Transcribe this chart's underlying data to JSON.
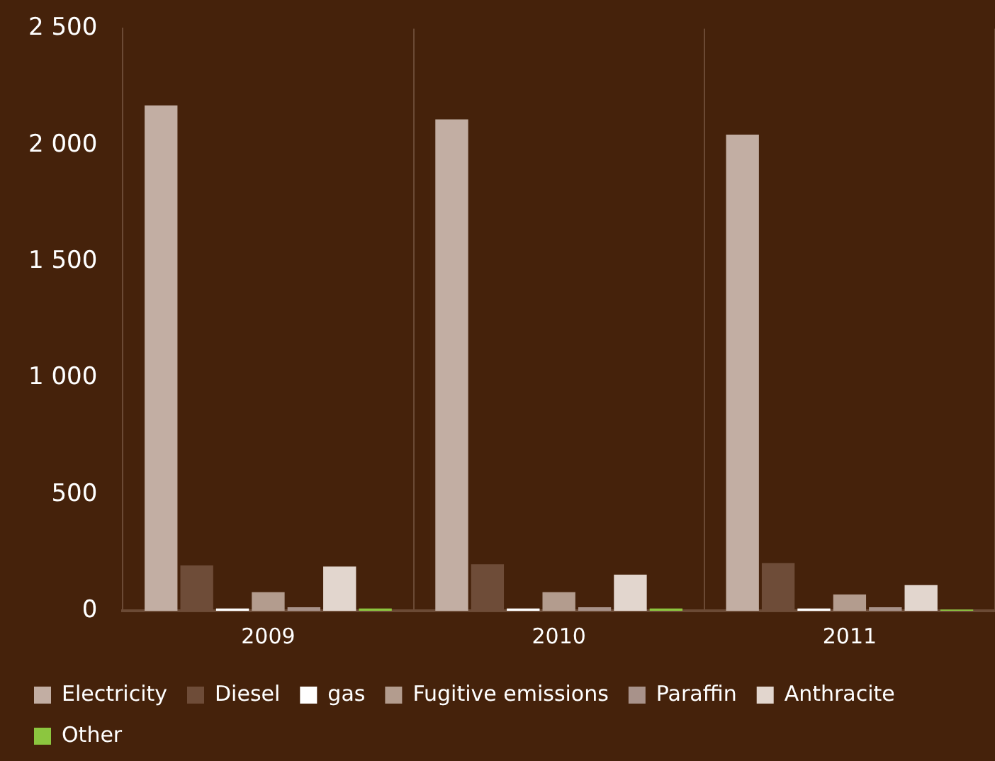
{
  "chart_data": {
    "type": "bar",
    "categories": [
      "2009",
      "2010",
      "2011"
    ],
    "series": [
      {
        "name": "Electricity",
        "color": "#c2aea3",
        "values": [
          2170,
          2110,
          2045
        ]
      },
      {
        "name": "Diesel",
        "color": "#6e4c38",
        "values": [
          195,
          200,
          205
        ]
      },
      {
        "name": "gas",
        "color": "#ffffff",
        "values": [
          10,
          10,
          10
        ]
      },
      {
        "name": "Fugitive emissions",
        "color": "#b39c8e",
        "values": [
          80,
          80,
          70
        ]
      },
      {
        "name": "Paraffin",
        "color": "#a8928a",
        "values": [
          15,
          15,
          15
        ]
      },
      {
        "name": "Anthracite",
        "color": "#e2d6ce",
        "values": [
          190,
          155,
          110
        ]
      },
      {
        "name": "Other",
        "color": "#8cc63f",
        "values": [
          10,
          10,
          5
        ]
      }
    ],
    "ylim": [
      0,
      2500
    ],
    "yticks": [
      {
        "value": 0,
        "label": "0"
      },
      {
        "value": 500,
        "label": "500"
      },
      {
        "value": 1000,
        "label": "1 000"
      },
      {
        "value": 1500,
        "label": "1 500"
      },
      {
        "value": 2000,
        "label": "2 000"
      },
      {
        "value": 2500,
        "label": "2 500"
      }
    ],
    "grid": "x",
    "legend": "bottom"
  }
}
